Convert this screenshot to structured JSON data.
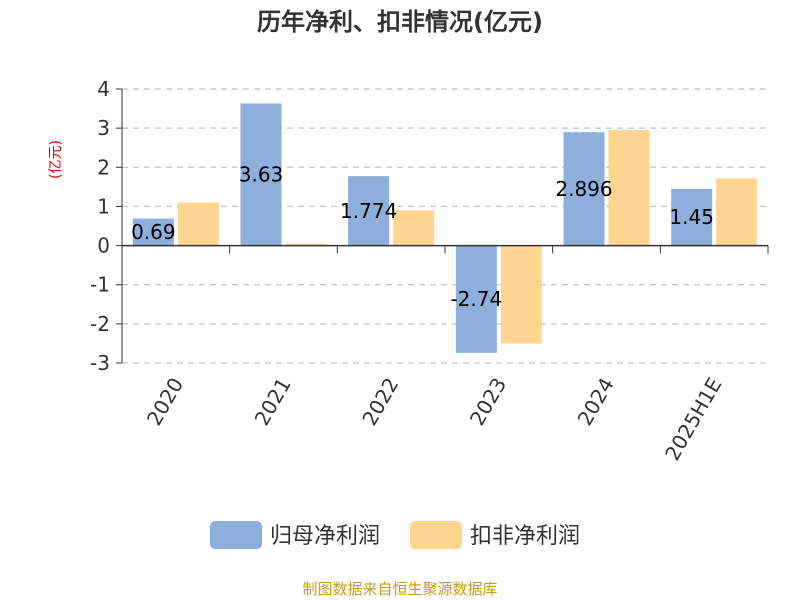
{
  "chart_data": {
    "type": "bar",
    "title": "历年净利、扣非情况(亿元)",
    "ylabel": "(亿元)",
    "xlabel": "",
    "categories": [
      "2020",
      "2021",
      "2022",
      "2023",
      "2024",
      "2025H1E"
    ],
    "ylim": [
      -3,
      4
    ],
    "yticks": [
      4,
      3,
      2,
      1,
      0,
      -1,
      -2,
      -3
    ],
    "grid": true,
    "legend_position": "bottom",
    "series": [
      {
        "name": "归母净利润",
        "color": "#8eaedc",
        "values": [
          0.69,
          3.63,
          1.774,
          -2.74,
          2.896,
          1.45
        ],
        "data_labels": [
          "0.69",
          "3.63",
          "1.774",
          "-2.74",
          "2.896",
          "1.45"
        ]
      },
      {
        "name": "扣非净利润",
        "color": "#ffd591",
        "values": [
          1.1,
          0.05,
          0.9,
          -2.5,
          2.95,
          1.72
        ]
      }
    ]
  },
  "source": "制图数据来自恒生聚源数据库",
  "colors": {
    "axis": "#333333",
    "grid": "#cccccc",
    "ylabel": "#dd0000",
    "source": "#c59a1e"
  }
}
